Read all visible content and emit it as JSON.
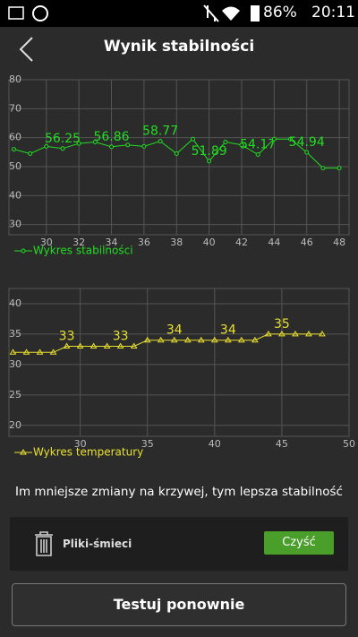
{
  "status_bar": {
    "battery": "86%",
    "time": "20:11"
  },
  "header": {
    "title": "Wynik stabilności"
  },
  "chart_data": [
    {
      "type": "line",
      "x": [
        28,
        29,
        30,
        31,
        32,
        33,
        34,
        35,
        36,
        37,
        38,
        39,
        40,
        41,
        42,
        43,
        44,
        45,
        46,
        47,
        48
      ],
      "series": [
        {
          "name": "Wykres stabilności",
          "color": "#22dd22",
          "values": [
            56,
            54.5,
            57,
            56.25,
            58,
            58.5,
            56.86,
            57.5,
            57,
            58.77,
            54.5,
            59.5,
            51.89,
            58.5,
            57.5,
            54.17,
            59.5,
            59.5,
            54.94,
            49.5,
            49.5
          ],
          "value_labels": [
            null,
            null,
            null,
            "56.25",
            null,
            null,
            "56.86",
            null,
            null,
            "58.77",
            null,
            null,
            "51.89",
            null,
            null,
            "54.17",
            null,
            null,
            "54.94",
            null,
            null
          ]
        }
      ],
      "xlim": [
        27.7,
        48.6
      ],
      "xticks": [
        30,
        32,
        34,
        36,
        38,
        40,
        42,
        44,
        46,
        48
      ],
      "ylim": [
        26.5,
        80
      ],
      "yticks": [
        30,
        40,
        50,
        60,
        70,
        80
      ],
      "grid": true
    },
    {
      "type": "line",
      "x": [
        25,
        26,
        27,
        28,
        29,
        30,
        31,
        32,
        33,
        34,
        35,
        36,
        37,
        38,
        39,
        40,
        41,
        42,
        43,
        44,
        45,
        46,
        47,
        48
      ],
      "series": [
        {
          "name": "Wykres temperatury",
          "color": "#e8e030",
          "values": [
            32,
            32,
            32,
            32,
            33,
            33,
            33,
            33,
            33,
            33,
            34,
            34,
            34,
            34,
            34,
            34,
            34,
            34,
            34,
            35,
            35,
            35,
            35,
            35
          ],
          "value_labels": [
            null,
            null,
            null,
            null,
            "33",
            null,
            null,
            null,
            "33",
            null,
            null,
            null,
            "34",
            null,
            null,
            null,
            "34",
            null,
            null,
            null,
            "35",
            null,
            null,
            null
          ]
        }
      ],
      "xlim": [
        24.7,
        50
      ],
      "xticks": [
        30,
        35,
        40,
        45,
        50
      ],
      "ylim": [
        18.2,
        42.5
      ],
      "yticks": [
        20,
        25,
        30,
        35,
        40
      ],
      "grid": true
    }
  ],
  "hint": "Im mniejsze zmiany na krzywej, tym lepsza stabilność",
  "junk": {
    "label": "Pliki-śmieci",
    "button": "Czyść"
  },
  "retest": "Testuj ponownie"
}
